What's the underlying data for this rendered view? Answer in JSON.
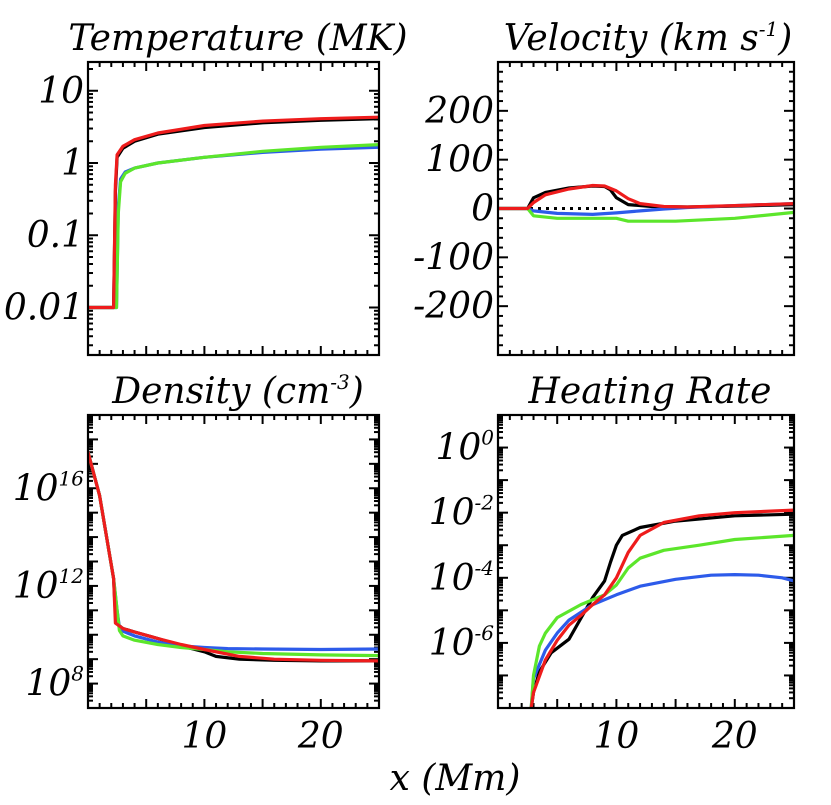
{
  "figure": {
    "xlabel": "x (Mm)"
  },
  "colors": {
    "black": "#000000",
    "blue": "#2d5bea",
    "green": "#5ce62b",
    "red": "#ee1c1c"
  },
  "chart_data": [
    {
      "id": "temperature",
      "type": "line",
      "title": "Temperature (MK)",
      "yscale": "log",
      "xlim": [
        0,
        25
      ],
      "ylim": [
        0.0022,
        25
      ],
      "yticks": [
        {
          "value": 0.01,
          "label": "0.01"
        },
        {
          "value": 0.1,
          "label": "0.1"
        },
        {
          "value": 1,
          "label": "1"
        },
        {
          "value": 10,
          "label": "10"
        }
      ],
      "xticks": [],
      "series": [
        {
          "name": "black",
          "color": "#000000",
          "x": [
            0,
            2.2,
            2.35,
            2.5,
            3,
            4,
            6,
            10,
            15,
            20,
            25
          ],
          "y": [
            0.01,
            0.01,
            0.4,
            1.2,
            1.6,
            2.0,
            2.5,
            3.1,
            3.6,
            3.9,
            4.1
          ]
        },
        {
          "name": "blue",
          "color": "#2d5bea",
          "x": [
            0,
            2.45,
            2.6,
            2.8,
            3.2,
            4,
            6,
            10,
            15,
            20,
            25
          ],
          "y": [
            0.01,
            0.01,
            0.25,
            0.6,
            0.75,
            0.85,
            1.0,
            1.2,
            1.4,
            1.55,
            1.65
          ]
        },
        {
          "name": "green",
          "color": "#5ce62b",
          "x": [
            0,
            2.45,
            2.6,
            2.8,
            3.2,
            4,
            6,
            10,
            15,
            20,
            25
          ],
          "y": [
            0.01,
            0.01,
            0.2,
            0.55,
            0.72,
            0.85,
            1.0,
            1.2,
            1.45,
            1.65,
            1.8
          ]
        },
        {
          "name": "red",
          "color": "#ee1c1c",
          "x": [
            0,
            2.2,
            2.35,
            2.5,
            3,
            4,
            6,
            10,
            15,
            20,
            25
          ],
          "y": [
            0.01,
            0.01,
            0.5,
            1.3,
            1.7,
            2.1,
            2.6,
            3.3,
            3.8,
            4.1,
            4.3
          ]
        }
      ]
    },
    {
      "id": "velocity",
      "type": "line",
      "title": "Velocity (km s",
      "title_sup": "-1",
      "title_end": ")",
      "yscale": "linear",
      "xlim": [
        0,
        25
      ],
      "ylim": [
        -300,
        300
      ],
      "yticks": [
        {
          "value": -200,
          "label": "-200"
        },
        {
          "value": -100,
          "label": "-100"
        },
        {
          "value": 0,
          "label": "0"
        },
        {
          "value": 100,
          "label": "100"
        },
        {
          "value": 200,
          "label": "200"
        }
      ],
      "xticks": [],
      "reference_line": {
        "y": 0,
        "x": [
          0,
          10
        ]
      },
      "series": [
        {
          "name": "black",
          "color": "#000000",
          "x": [
            0,
            2.5,
            3,
            4,
            6,
            8,
            9,
            9.5,
            10,
            11,
            13,
            16,
            20,
            25
          ],
          "y": [
            0,
            0,
            22,
            33,
            42,
            46,
            45,
            38,
            22,
            8,
            4,
            3,
            5,
            8
          ]
        },
        {
          "name": "blue",
          "color": "#2d5bea",
          "x": [
            0,
            2.5,
            3,
            5,
            8,
            10,
            12,
            14,
            16,
            20,
            25
          ],
          "y": [
            0,
            0,
            -5,
            -10,
            -12,
            -9,
            -5,
            -1,
            2,
            6,
            10
          ]
        },
        {
          "name": "green",
          "color": "#5ce62b",
          "x": [
            0,
            2.5,
            3,
            5,
            8,
            10,
            11,
            15,
            20,
            25
          ],
          "y": [
            0,
            0,
            -15,
            -20,
            -20,
            -20,
            -26,
            -26,
            -20,
            -8
          ]
        },
        {
          "name": "red",
          "color": "#ee1c1c",
          "x": [
            0,
            2.5,
            3,
            4,
            6,
            8,
            9,
            10,
            11,
            12,
            14,
            16,
            20,
            25
          ],
          "y": [
            0,
            0,
            12,
            28,
            40,
            47,
            46,
            36,
            20,
            10,
            4,
            3,
            6,
            10
          ]
        }
      ]
    },
    {
      "id": "density",
      "type": "line",
      "title": "Density (cm",
      "title_sup": "-3",
      "title_end": ")",
      "yscale": "log",
      "xlim": [
        0,
        25
      ],
      "ylim": [
        10000000.0,
        1e+19
      ],
      "yticks": [
        {
          "value": 100000000.0,
          "base": "10",
          "exp": "8"
        },
        {
          "value": 1000000000000.0,
          "base": "10",
          "exp": "12"
        },
        {
          "value": 1e+16,
          "base": "10",
          "exp": "16"
        }
      ],
      "xticks": [
        {
          "value": 10,
          "label": "10"
        },
        {
          "value": 20,
          "label": "20"
        }
      ],
      "series": [
        {
          "name": "black",
          "color": "#000000",
          "x": [
            0,
            1,
            2.2,
            2.4,
            3,
            4,
            6,
            8,
            10,
            11,
            13,
            16,
            20,
            25
          ],
          "y": [
            3e+17,
            5000000000000000.0,
            2000000000000.0,
            30000000000.0,
            18000000000.0,
            13000000000.0,
            7000000000.0,
            3500000000.0,
            2000000000.0,
            1300000000.0,
            1000000000.0,
            900000000.0,
            850000000.0,
            850000000.0
          ]
        },
        {
          "name": "blue",
          "color": "#2d5bea",
          "x": [
            0,
            1,
            2.2,
            2.5,
            2.7,
            3,
            4,
            6,
            8,
            10,
            12,
            15,
            20,
            25
          ],
          "y": [
            3e+17,
            5000000000000000.0,
            2000000000000.0,
            100000000000.0,
            20000000000.0,
            14000000000.0,
            9000000000.0,
            5000000000.0,
            3500000000.0,
            3000000000.0,
            2700000000.0,
            2600000000.0,
            2500000000.0,
            2600000000.0
          ]
        },
        {
          "name": "green",
          "color": "#5ce62b",
          "x": [
            0,
            1,
            2.2,
            2.5,
            2.7,
            3,
            4,
            6,
            8,
            10,
            12,
            15,
            20,
            25
          ],
          "y": [
            3e+17,
            5000000000000000.0,
            2000000000000.0,
            100000000000.0,
            15000000000.0,
            9000000000.0,
            6000000000.0,
            4000000000.0,
            3000000000.0,
            2500000000.0,
            2000000000.0,
            1700000000.0,
            1500000000.0,
            1400000000.0
          ]
        },
        {
          "name": "red",
          "color": "#ee1c1c",
          "x": [
            0,
            1,
            2.2,
            2.35,
            3,
            4,
            6,
            8,
            10,
            13,
            16,
            20,
            25
          ],
          "y": [
            3e+17,
            5000000000000000.0,
            2000000000000.0,
            30000000000.0,
            18000000000.0,
            13000000000.0,
            7000000000.0,
            4000000000.0,
            2500000000.0,
            1300000000.0,
            1000000000.0,
            900000000.0,
            850000000.0
          ]
        }
      ]
    },
    {
      "id": "heating",
      "type": "line",
      "title": "Heating Rate",
      "yscale": "log",
      "xlim": [
        0,
        25
      ],
      "ylim": [
        1e-08,
        10
      ],
      "yticks": [
        {
          "value": 1e-06,
          "base": "10",
          "exp": "-6"
        },
        {
          "value": 0.0001,
          "base": "10",
          "exp": "-4"
        },
        {
          "value": 0.01,
          "base": "10",
          "exp": "-2"
        },
        {
          "value": 1,
          "base": "10",
          "exp": "0"
        }
      ],
      "xticks": [
        {
          "value": 10,
          "label": "10"
        },
        {
          "value": 20,
          "label": "20"
        }
      ],
      "series": [
        {
          "name": "black",
          "color": "#000000",
          "x": [
            2.8,
            3,
            3.5,
            4.5,
            6,
            8,
            9,
            9.5,
            10,
            10.5,
            12,
            15,
            20,
            25
          ],
          "y": [
            1e-08,
            3e-08,
            1.3e-07,
            5e-07,
            1.3e-06,
            2.5e-05,
            8e-05,
            0.0003,
            0.001,
            0.002,
            0.0035,
            0.0055,
            0.008,
            0.009
          ]
        },
        {
          "name": "blue",
          "color": "#2d5bea",
          "x": [
            2.8,
            3,
            4,
            5,
            6,
            8,
            10,
            12,
            15,
            18,
            20,
            22,
            24,
            25
          ],
          "y": [
            1e-08,
            8e-08,
            6e-07,
            2e-06,
            5e-06,
            1.5e-05,
            3e-05,
            5.5e-05,
            9e-05,
            0.00012,
            0.000125,
            0.00012,
            0.0001,
            8e-05
          ]
        },
        {
          "name": "green",
          "color": "#5ce62b",
          "x": [
            2.8,
            3,
            3.5,
            4,
            5,
            7,
            9,
            10,
            11,
            12,
            14,
            17,
            20,
            25
          ],
          "y": [
            1e-08,
            1e-07,
            8e-07,
            2e-06,
            6e-06,
            1.5e-05,
            3e-05,
            6e-05,
            0.0002,
            0.0004,
            0.0007,
            0.001,
            0.0015,
            0.002
          ]
        },
        {
          "name": "red",
          "color": "#ee1c1c",
          "x": [
            2.8,
            3,
            4,
            5,
            6,
            7,
            8,
            9,
            10,
            11,
            12,
            14,
            17,
            20,
            25
          ],
          "y": [
            1e-08,
            3e-08,
            3e-07,
            1.2e-06,
            3.5e-06,
            7e-06,
            1.5e-05,
            3e-05,
            0.0001,
            0.0006,
            0.002,
            0.005,
            0.008,
            0.01,
            0.012
          ]
        }
      ]
    }
  ]
}
